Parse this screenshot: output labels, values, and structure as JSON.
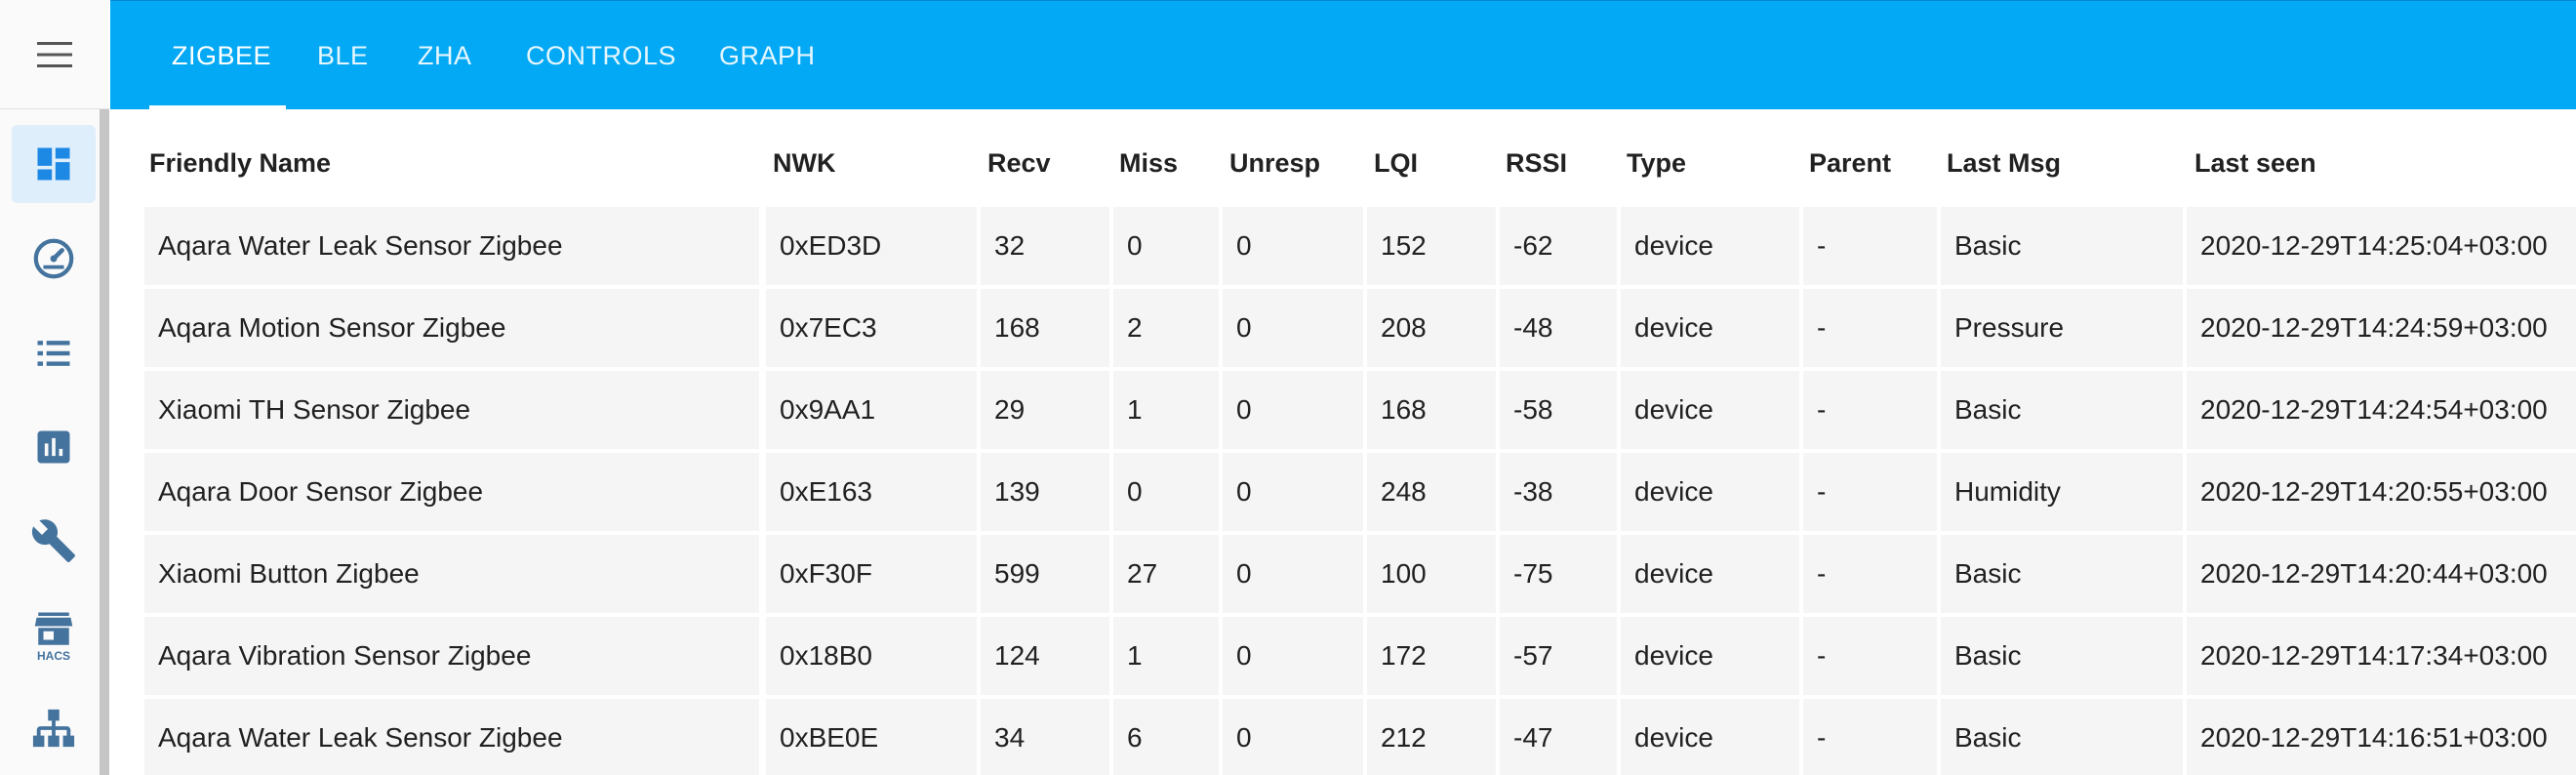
{
  "tabs": [
    {
      "label": "ZIGBEE"
    },
    {
      "label": "BLE"
    },
    {
      "label": "ZHA"
    },
    {
      "label": "CONTROLS"
    },
    {
      "label": "GRAPH"
    }
  ],
  "sidebar": {
    "items": [
      {
        "icon": "dashboard-icon"
      },
      {
        "icon": "gauge-icon"
      },
      {
        "icon": "list-icon"
      },
      {
        "icon": "chart-box-icon"
      },
      {
        "icon": "wrench-icon"
      },
      {
        "icon": "store-icon",
        "caption": "HACS"
      },
      {
        "icon": "sitemap-icon"
      }
    ]
  },
  "table": {
    "headers": [
      "Friendly Name",
      "NWK",
      "Recv",
      "Miss",
      "Unresp",
      "LQI",
      "RSSI",
      "Type",
      "Parent",
      "Last Msg",
      "Last seen"
    ],
    "rows": [
      [
        "Aqara Water Leak Sensor Zigbee",
        "0xED3D",
        "32",
        "0",
        "0",
        "152",
        "-62",
        "device",
        "-",
        "Basic",
        "2020-12-29T14:25:04+03:00"
      ],
      [
        "Aqara Motion Sensor Zigbee",
        "0x7EC3",
        "168",
        "2",
        "0",
        "208",
        "-48",
        "device",
        "-",
        "Pressure",
        "2020-12-29T14:24:59+03:00"
      ],
      [
        "Xiaomi TH Sensor Zigbee",
        "0x9AA1",
        "29",
        "1",
        "0",
        "168",
        "-58",
        "device",
        "-",
        "Basic",
        "2020-12-29T14:24:54+03:00"
      ],
      [
        "Aqara Door Sensor Zigbee",
        "0xE163",
        "139",
        "0",
        "0",
        "248",
        "-38",
        "device",
        "-",
        "Humidity",
        "2020-12-29T14:20:55+03:00"
      ],
      [
        "Xiaomi Button Zigbee",
        "0xF30F",
        "599",
        "27",
        "0",
        "100",
        "-75",
        "device",
        "-",
        "Basic",
        "2020-12-29T14:20:44+03:00"
      ],
      [
        "Aqara Vibration Sensor Zigbee",
        "0x18B0",
        "124",
        "1",
        "0",
        "172",
        "-57",
        "device",
        "-",
        "Basic",
        "2020-12-29T14:17:34+03:00"
      ],
      [
        "Aqara Water Leak Sensor Zigbee",
        "0xBE0E",
        "34",
        "6",
        "0",
        "212",
        "-47",
        "device",
        "-",
        "Basic",
        "2020-12-29T14:16:51+03:00"
      ]
    ]
  },
  "colors": {
    "header": "#03a9f4",
    "sidebar_icon": "#44739e",
    "row_background": "#f5f5f5"
  }
}
